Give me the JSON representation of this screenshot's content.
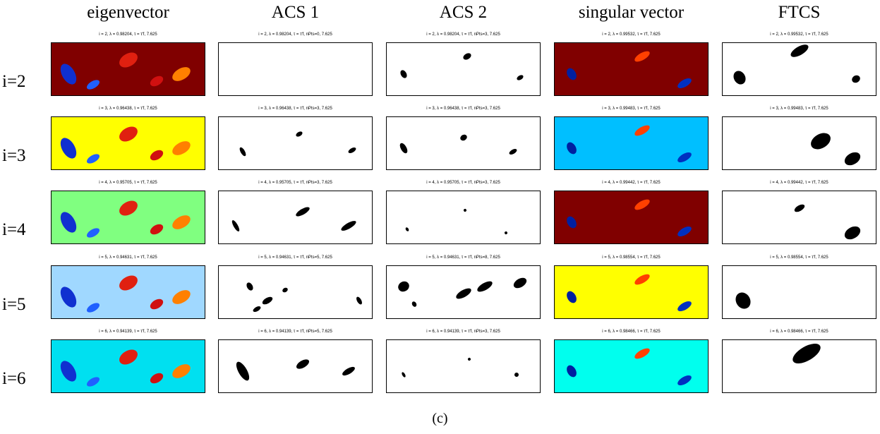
{
  "columns": [
    "eigenvector",
    "ACS 1",
    "ACS 2",
    "singular vector",
    "FTCS"
  ],
  "rows": [
    {
      "label": "i=2",
      "cells": [
        "i = 2, λ = 0.98204, τ = τ′f, 7.625",
        "i = 2, λ = 0.98204, τ = τ′f, nPts=0, 7.625",
        "i = 2, λ = 0.98204, τ = τ′f, nPts=3, 7.625",
        "i = 2, λ = 0.99532, τ = τ′f, 7.625",
        "i = 2, λ = 0.99532, τ = τ′f, 7.625"
      ]
    },
    {
      "label": "i=3",
      "cells": [
        "i = 3, λ = 0.96438, τ = τ′f, 7.625",
        "i = 3, λ = 0.96438, τ = τ′f, nPts=3, 7.625",
        "i = 3, λ = 0.96438, τ = τ′f, nPts=3, 7.625",
        "i = 3, λ = 0.99483, τ = τ′f, 7.625",
        "i = 3, λ = 0.99483, τ = τ′f, 7.625"
      ]
    },
    {
      "label": "i=4",
      "cells": [
        "i = 4, λ = 0.95705, τ = τ′f, 7.625",
        "i = 4, λ = 0.95705, τ = τ′f, nPts=3, 7.625",
        "i = 4, λ = 0.95705, τ = τ′f, nPts=3, 7.625",
        "i = 4, λ = 0.99442, τ = τ′f, 7.625",
        "i = 4, λ = 0.99442, τ = τ′f, 7.625"
      ]
    },
    {
      "label": "i=5",
      "cells": [
        "i = 5, λ = 0.94631, τ = τ′f, 7.625",
        "i = 5, λ = 0.94631, τ = τ′f, nPts=5, 7.625",
        "i = 5, λ = 0.94631, τ = τ′f, nPts=8, 7.625",
        "i = 5, λ = 0.98554, τ = τ′f, 7.625",
        "i = 5, λ = 0.98554, τ = τ′f, 7.625"
      ]
    },
    {
      "label": "i=6",
      "cells": [
        "i = 6, λ = 0.94139, τ = τ′f, 7.625",
        "i = 6, λ = 0.94139, τ = τ′f, nPts=5, 7.625",
        "i = 6, λ = 0.94139, τ = τ′f, nPts=3, 7.625",
        "i = 6, λ = 0.98466, τ = τ′f, 7.625",
        "i = 6, λ = 0.98466, τ = τ′f, 7.625"
      ]
    }
  ],
  "caption": "(c)"
}
